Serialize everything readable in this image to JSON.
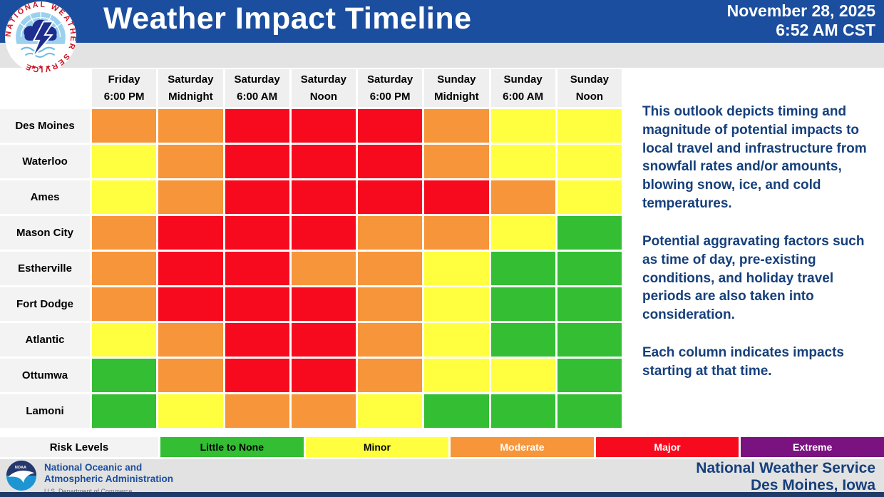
{
  "header": {
    "title": "Weather Impact Timeline",
    "date": "November 28, 2025",
    "time": "6:52 AM CST",
    "logo_icon": "nws-seal-icon",
    "bg_color": "#1B4E9E"
  },
  "chart_data": {
    "type": "heatmap",
    "title": "Weather Impact Timeline",
    "columns": [
      {
        "day": "Friday",
        "time": "6:00 PM"
      },
      {
        "day": "Saturday",
        "time": "Midnight"
      },
      {
        "day": "Saturday",
        "time": "6:00 AM"
      },
      {
        "day": "Saturday",
        "time": "Noon"
      },
      {
        "day": "Saturday",
        "time": "6:00 PM"
      },
      {
        "day": "Sunday",
        "time": "Midnight"
      },
      {
        "day": "Sunday",
        "time": "6:00 AM"
      },
      {
        "day": "Sunday",
        "time": "Noon"
      }
    ],
    "rows": [
      "Des Moines",
      "Waterloo",
      "Ames",
      "Mason City",
      "Estherville",
      "Fort Dodge",
      "Atlantic",
      "Ottumwa",
      "Lamoni"
    ],
    "levels": {
      "little_to_none": {
        "label": "Little to None",
        "color": "#33BE33",
        "text": "#000000"
      },
      "minor": {
        "label": "Minor",
        "color": "#FFFF3F",
        "text": "#000000"
      },
      "moderate": {
        "label": "Moderate",
        "color": "#F7953A",
        "text": "#FFFFFF"
      },
      "major": {
        "label": "Major",
        "color": "#F70A1E",
        "text": "#FFFFFF"
      },
      "extreme": {
        "label": "Extreme",
        "color": "#7A1380",
        "text": "#FFFFFF"
      }
    },
    "values": [
      [
        "moderate",
        "moderate",
        "major",
        "major",
        "major",
        "moderate",
        "minor",
        "minor"
      ],
      [
        "minor",
        "moderate",
        "major",
        "major",
        "major",
        "moderate",
        "minor",
        "minor"
      ],
      [
        "minor",
        "moderate",
        "major",
        "major",
        "major",
        "major",
        "moderate",
        "minor"
      ],
      [
        "moderate",
        "major",
        "major",
        "major",
        "moderate",
        "moderate",
        "minor",
        "little_to_none"
      ],
      [
        "moderate",
        "major",
        "major",
        "moderate",
        "moderate",
        "minor",
        "little_to_none",
        "little_to_none"
      ],
      [
        "moderate",
        "major",
        "major",
        "major",
        "moderate",
        "minor",
        "little_to_none",
        "little_to_none"
      ],
      [
        "minor",
        "moderate",
        "major",
        "major",
        "moderate",
        "minor",
        "little_to_none",
        "little_to_none"
      ],
      [
        "little_to_none",
        "moderate",
        "major",
        "major",
        "moderate",
        "minor",
        "minor",
        "little_to_none"
      ],
      [
        "little_to_none",
        "minor",
        "moderate",
        "moderate",
        "minor",
        "little_to_none",
        "little_to_none",
        "little_to_none"
      ]
    ]
  },
  "legend": {
    "title": "Risk Levels",
    "order": [
      "little_to_none",
      "minor",
      "moderate",
      "major",
      "extreme"
    ]
  },
  "description": {
    "paragraphs": [
      "This outlook depicts timing and magnitude of potential impacts to local travel and infrastructure from snowfall rates and/or amounts, blowing snow, ice, and cold temperatures.",
      "Potential aggravating factors such as time of day, pre-existing conditions, and holiday travel periods are also taken into consideration.",
      "Each column indicates impacts starting at that time."
    ]
  },
  "footer": {
    "logo_icon": "noaa-logo-icon",
    "agency_line1": "National Oceanic and",
    "agency_line2": "Atmospheric Administration",
    "dept": "U.S. Department of Commerce",
    "office_line1": "National Weather Service",
    "office_line2": "Des Moines, Iowa"
  }
}
